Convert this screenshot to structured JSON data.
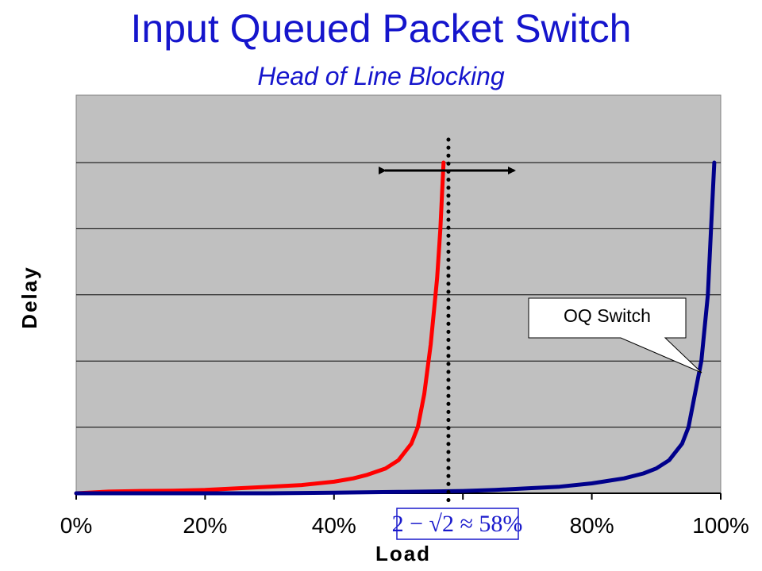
{
  "chart_data": {
    "type": "line",
    "title": "Input Queued Packet Switch",
    "subtitle": "Head of Line Blocking",
    "xlabel": "Load",
    "ylabel": "Delay",
    "x_tick_labels": [
      "0%",
      "20%",
      "40%",
      "",
      "80%",
      "100%"
    ],
    "xlim": [
      0,
      1
    ],
    "ylim": [
      0,
      1
    ],
    "grid": true,
    "series": [
      {
        "color": "#ff0000",
        "x": [
          0,
          0.05,
          0.1,
          0.15,
          0.2,
          0.25,
          0.3,
          0.35,
          0.4,
          0.43,
          0.45,
          0.48,
          0.5,
          0.52,
          0.53,
          0.54,
          0.55,
          0.56,
          0.565,
          0.57
        ],
        "y": [
          0.0,
          0.005,
          0.007,
          0.008,
          0.01,
          0.015,
          0.02,
          0.025,
          0.035,
          0.045,
          0.055,
          0.075,
          0.1,
          0.15,
          0.2,
          0.3,
          0.45,
          0.65,
          0.8,
          1.0
        ]
      },
      {
        "color": "#00008b",
        "x": [
          0,
          0.1,
          0.2,
          0.3,
          0.4,
          0.5,
          0.6,
          0.65,
          0.7,
          0.75,
          0.8,
          0.85,
          0.88,
          0.9,
          0.92,
          0.94,
          0.95,
          0.96,
          0.97,
          0.98,
          0.985,
          0.99
        ],
        "y": [
          0.0,
          0.0,
          0.0,
          0.0,
          0.002,
          0.004,
          0.007,
          0.01,
          0.015,
          0.02,
          0.03,
          0.045,
          0.06,
          0.075,
          0.1,
          0.15,
          0.2,
          0.3,
          0.4,
          0.6,
          0.8,
          1.0
        ]
      }
    ],
    "annotations": {
      "callout": "OQ Switch",
      "formula": "2 − √2 ≈ 58%",
      "threshold_x": 0.58
    }
  }
}
